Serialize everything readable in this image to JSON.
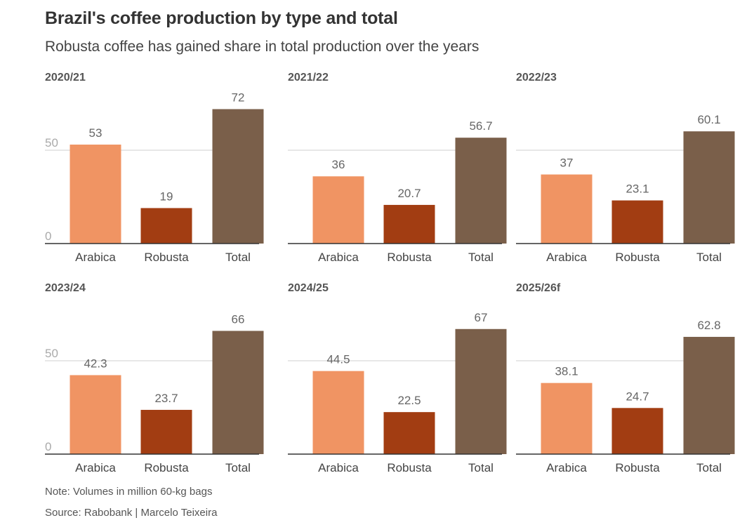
{
  "title": "Brazil's coffee production by type and total",
  "subtitle": "Robusta coffee has gained share in total production over the years",
  "note": "Note: Volumes in million 60-kg bags",
  "source": "Source: Rabobank | Marcelo Teixeira",
  "colors": {
    "Arabica": "#f09463",
    "Robusta": "#a23d12",
    "Total": "#7a5f4a"
  },
  "chart_data": [
    {
      "type": "bar",
      "title": "2020/21",
      "categories": [
        "Arabica",
        "Robusta",
        "Total"
      ],
      "values": [
        53,
        19,
        72
      ],
      "labels": [
        "53",
        "19",
        "72"
      ],
      "yticks": [
        "0",
        "50"
      ],
      "ylim": [
        0,
        72
      ]
    },
    {
      "type": "bar",
      "title": "2021/22",
      "categories": [
        "Arabica",
        "Robusta",
        "Total"
      ],
      "values": [
        36,
        20.7,
        56.7
      ],
      "labels": [
        "36",
        "20.7",
        "56.7"
      ],
      "yticks": [],
      "ylim": [
        0,
        72
      ]
    },
    {
      "type": "bar",
      "title": "2022/23",
      "categories": [
        "Arabica",
        "Robusta",
        "Total"
      ],
      "values": [
        37,
        23.1,
        60.1
      ],
      "labels": [
        "37",
        "23.1",
        "60.1"
      ],
      "yticks": [],
      "ylim": [
        0,
        72
      ]
    },
    {
      "type": "bar",
      "title": "2023/24",
      "categories": [
        "Arabica",
        "Robusta",
        "Total"
      ],
      "values": [
        42.3,
        23.7,
        66
      ],
      "labels": [
        "42.3",
        "23.7",
        "66"
      ],
      "yticks": [
        "0",
        "50"
      ],
      "ylim": [
        0,
        72
      ]
    },
    {
      "type": "bar",
      "title": "2024/25",
      "categories": [
        "Arabica",
        "Robusta",
        "Total"
      ],
      "values": [
        44.5,
        22.5,
        67
      ],
      "labels": [
        "44.5",
        "22.5",
        "67"
      ],
      "yticks": [],
      "ylim": [
        0,
        72
      ]
    },
    {
      "type": "bar",
      "title": "2025/26f",
      "categories": [
        "Arabica",
        "Robusta",
        "Total"
      ],
      "values": [
        38.1,
        24.7,
        62.8
      ],
      "labels": [
        "38.1",
        "24.7",
        "62.8"
      ],
      "yticks": [],
      "ylim": [
        0,
        72
      ]
    }
  ]
}
